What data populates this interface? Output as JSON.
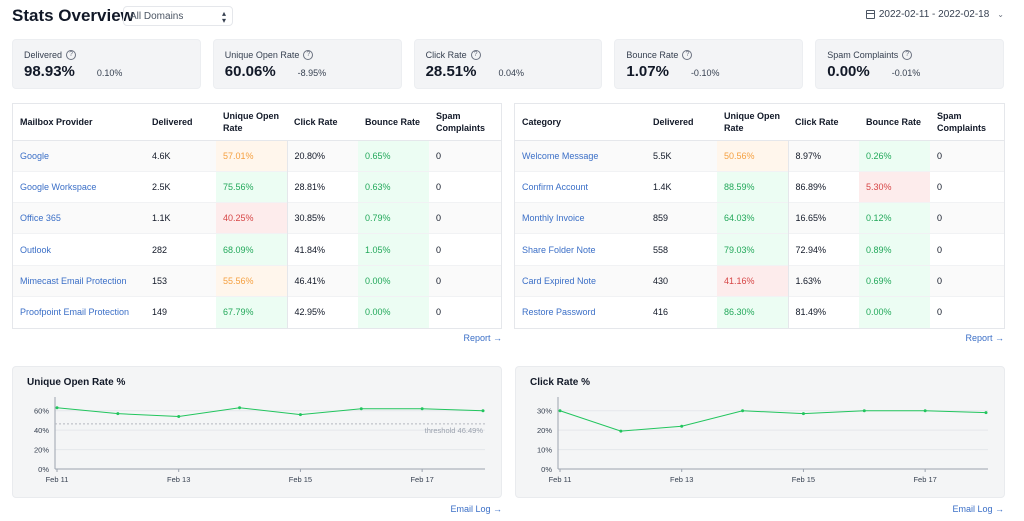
{
  "header": {
    "title": "Stats Overview",
    "domain_select": "All Domains",
    "date_range": "2022-02-11 - 2022-02-18"
  },
  "stats": [
    {
      "label": "Delivered",
      "value": "98.93%",
      "delta": "0.10%"
    },
    {
      "label": "Unique Open Rate",
      "value": "60.06%",
      "delta": "-8.95%"
    },
    {
      "label": "Click Rate",
      "value": "28.51%",
      "delta": "0.04%"
    },
    {
      "label": "Bounce Rate",
      "value": "1.07%",
      "delta": "-0.10%"
    },
    {
      "label": "Spam Complaints",
      "value": "0.00%",
      "delta": "-0.01%"
    }
  ],
  "provider_table": {
    "headers": [
      "Mailbox Provider",
      "Delivered",
      "Unique Open Rate",
      "Click Rate",
      "Bounce Rate",
      "Spam Complaints"
    ],
    "rows": [
      [
        "Google",
        "4.6K",
        "57.01%",
        "20.80%",
        "0.65%",
        "0"
      ],
      [
        "Google Workspace",
        "2.5K",
        "75.56%",
        "28.81%",
        "0.63%",
        "0"
      ],
      [
        "Office 365",
        "1.1K",
        "40.25%",
        "30.85%",
        "0.79%",
        "0"
      ],
      [
        "Outlook",
        "282",
        "68.09%",
        "41.84%",
        "1.05%",
        "0"
      ],
      [
        "Mimecast Email Protection",
        "153",
        "55.56%",
        "46.41%",
        "0.00%",
        "0"
      ],
      [
        "Proofpoint Email Protection",
        "149",
        "67.79%",
        "42.95%",
        "0.00%",
        "0"
      ]
    ],
    "open_status": [
      "warn",
      "good",
      "bad",
      "good",
      "warn",
      "good"
    ],
    "bounce_status": [
      "good",
      "good",
      "good",
      "good",
      "good",
      "good"
    ],
    "report_link": "Report →"
  },
  "category_table": {
    "headers": [
      "Category",
      "Delivered",
      "Unique Open Rate",
      "Click Rate",
      "Bounce Rate",
      "Spam Complaints"
    ],
    "rows": [
      [
        "Welcome Message",
        "5.5K",
        "50.56%",
        "8.97%",
        "0.26%",
        "0"
      ],
      [
        "Confirm Account",
        "1.4K",
        "88.59%",
        "86.89%",
        "5.30%",
        "0"
      ],
      [
        "Monthly Invoice",
        "859",
        "64.03%",
        "16.65%",
        "0.12%",
        "0"
      ],
      [
        "Share Folder Note",
        "558",
        "79.03%",
        "72.94%",
        "0.89%",
        "0"
      ],
      [
        "Card Expired Note",
        "430",
        "41.16%",
        "1.63%",
        "0.69%",
        "0"
      ],
      [
        "Restore Password",
        "416",
        "86.30%",
        "81.49%",
        "0.00%",
        "0"
      ]
    ],
    "open_status": [
      "warn",
      "good",
      "good",
      "good",
      "bad",
      "good"
    ],
    "bounce_status": [
      "good",
      "bad",
      "good",
      "good",
      "good",
      "good"
    ],
    "report_link": "Report →"
  },
  "chart_data": [
    {
      "type": "line",
      "title": "Unique Open Rate %",
      "x": [
        "Feb 11",
        "Feb 12",
        "Feb 13",
        "Feb 14",
        "Feb 15",
        "Feb 16",
        "Feb 17",
        "Feb 18"
      ],
      "x_tick_labels": [
        "Feb 11",
        "Feb 13",
        "Feb 15",
        "Feb 17"
      ],
      "series": [
        {
          "values": [
            63,
            57,
            54,
            63,
            56,
            62,
            62,
            60
          ]
        }
      ],
      "y_ticks": [
        "0%",
        "20%",
        "40%",
        "60%"
      ],
      "ylim": [
        0,
        70
      ],
      "threshold": {
        "value": 46.49,
        "label": "threshold 46.49%"
      },
      "color": "#22c55e",
      "link": "Email Log →"
    },
    {
      "type": "line",
      "title": "Click Rate %",
      "x": [
        "Feb 11",
        "Feb 12",
        "Feb 13",
        "Feb 14",
        "Feb 15",
        "Feb 16",
        "Feb 17",
        "Feb 18"
      ],
      "x_tick_labels": [
        "Feb 11",
        "Feb 13",
        "Feb 15",
        "Feb 17"
      ],
      "series": [
        {
          "values": [
            30,
            19.5,
            22,
            30,
            28.5,
            30,
            30,
            29
          ]
        }
      ],
      "y_ticks": [
        "0%",
        "10%",
        "20%",
        "30%"
      ],
      "ylim": [
        0,
        35
      ],
      "color": "#22c55e",
      "link": "Email Log →"
    }
  ]
}
